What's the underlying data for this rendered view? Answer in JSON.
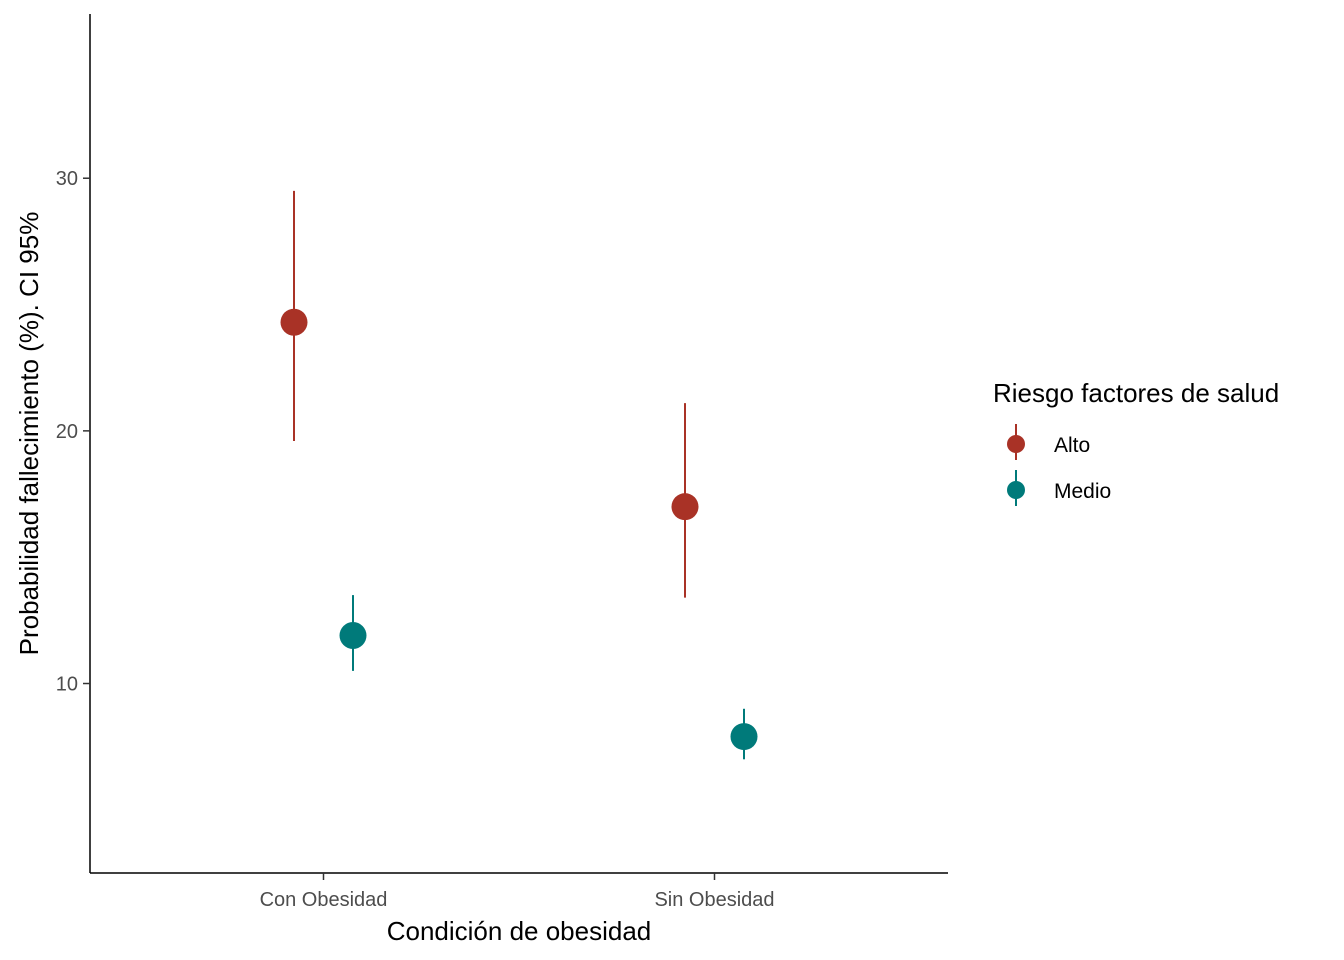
{
  "chart_data": {
    "type": "scatter",
    "xlabel": "Condición de obesidad",
    "ylabel": "Probabilidad fallecimiento (%). CI 95%",
    "categories": [
      "Con Obesidad",
      "Sin Obesidad"
    ],
    "ylim": [
      2.5,
      36.5
    ],
    "yticks": [
      10,
      20,
      30
    ],
    "grid": false,
    "legend": {
      "title": "Riesgo factores de salud",
      "position": "right"
    },
    "series": [
      {
        "name": "Alto",
        "color": "#a93226",
        "values": [
          24.3,
          17.0
        ],
        "lower": [
          19.6,
          13.4
        ],
        "upper": [
          29.5,
          21.1
        ]
      },
      {
        "name": "Medio",
        "color": "#007a7a",
        "values": [
          11.9,
          7.9
        ],
        "lower": [
          10.5,
          7.0
        ],
        "upper": [
          13.5,
          9.0
        ]
      }
    ]
  }
}
